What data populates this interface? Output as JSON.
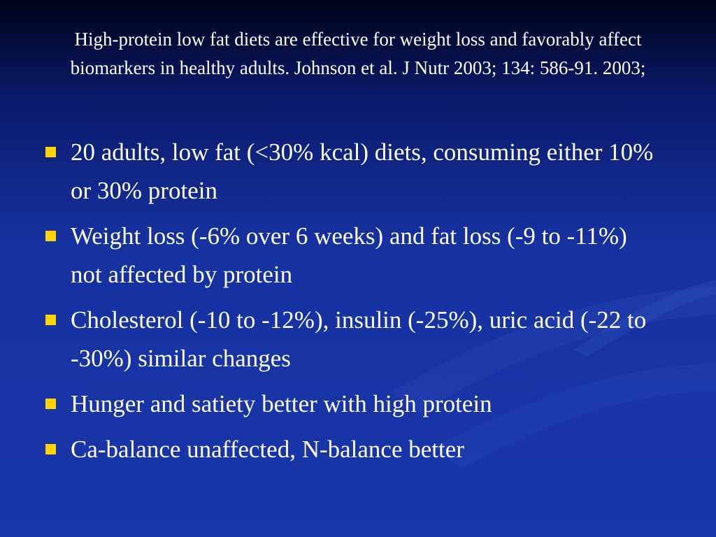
{
  "slide": {
    "title": "High-protein low fat diets are effective for weight loss and favorably affect biomarkers in healthy adults. Johnson et al. J Nutr 2003; 134: 586-91. 2003;",
    "bullets": [
      "20 adults, low fat (<30% kcal) diets, consuming either 10% or 30% protein",
      "Weight loss (-6% over 6 weeks) and fat loss (-9 to -11%) not affected by protein",
      "Cholesterol (-10 to -12%), insulin (-25%), uric acid (-22 to -30%) similar changes",
      "Hunger and satiety better with high protein",
      "Ca-balance unaffected, N-balance better"
    ]
  }
}
